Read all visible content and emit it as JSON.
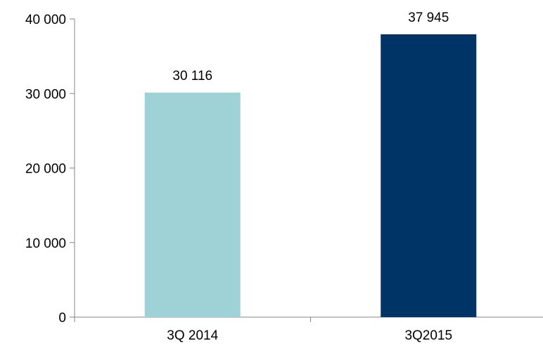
{
  "chart_data": {
    "type": "bar",
    "title": "",
    "xlabel": "",
    "ylabel": "",
    "categories": [
      "3Q 2014",
      "3Q2015"
    ],
    "values": [
      30116,
      37945
    ],
    "value_labels": [
      "30 116",
      "37 945"
    ],
    "colors": [
      "#9fd2d6",
      "#003366"
    ],
    "ylim": [
      0,
      40000
    ],
    "yticks": [
      0,
      10000,
      20000,
      30000,
      40000
    ],
    "ytick_labels": [
      "0",
      "10 000",
      "20 000",
      "30 000",
      "40 000"
    ],
    "grid": false,
    "legend": "none"
  }
}
